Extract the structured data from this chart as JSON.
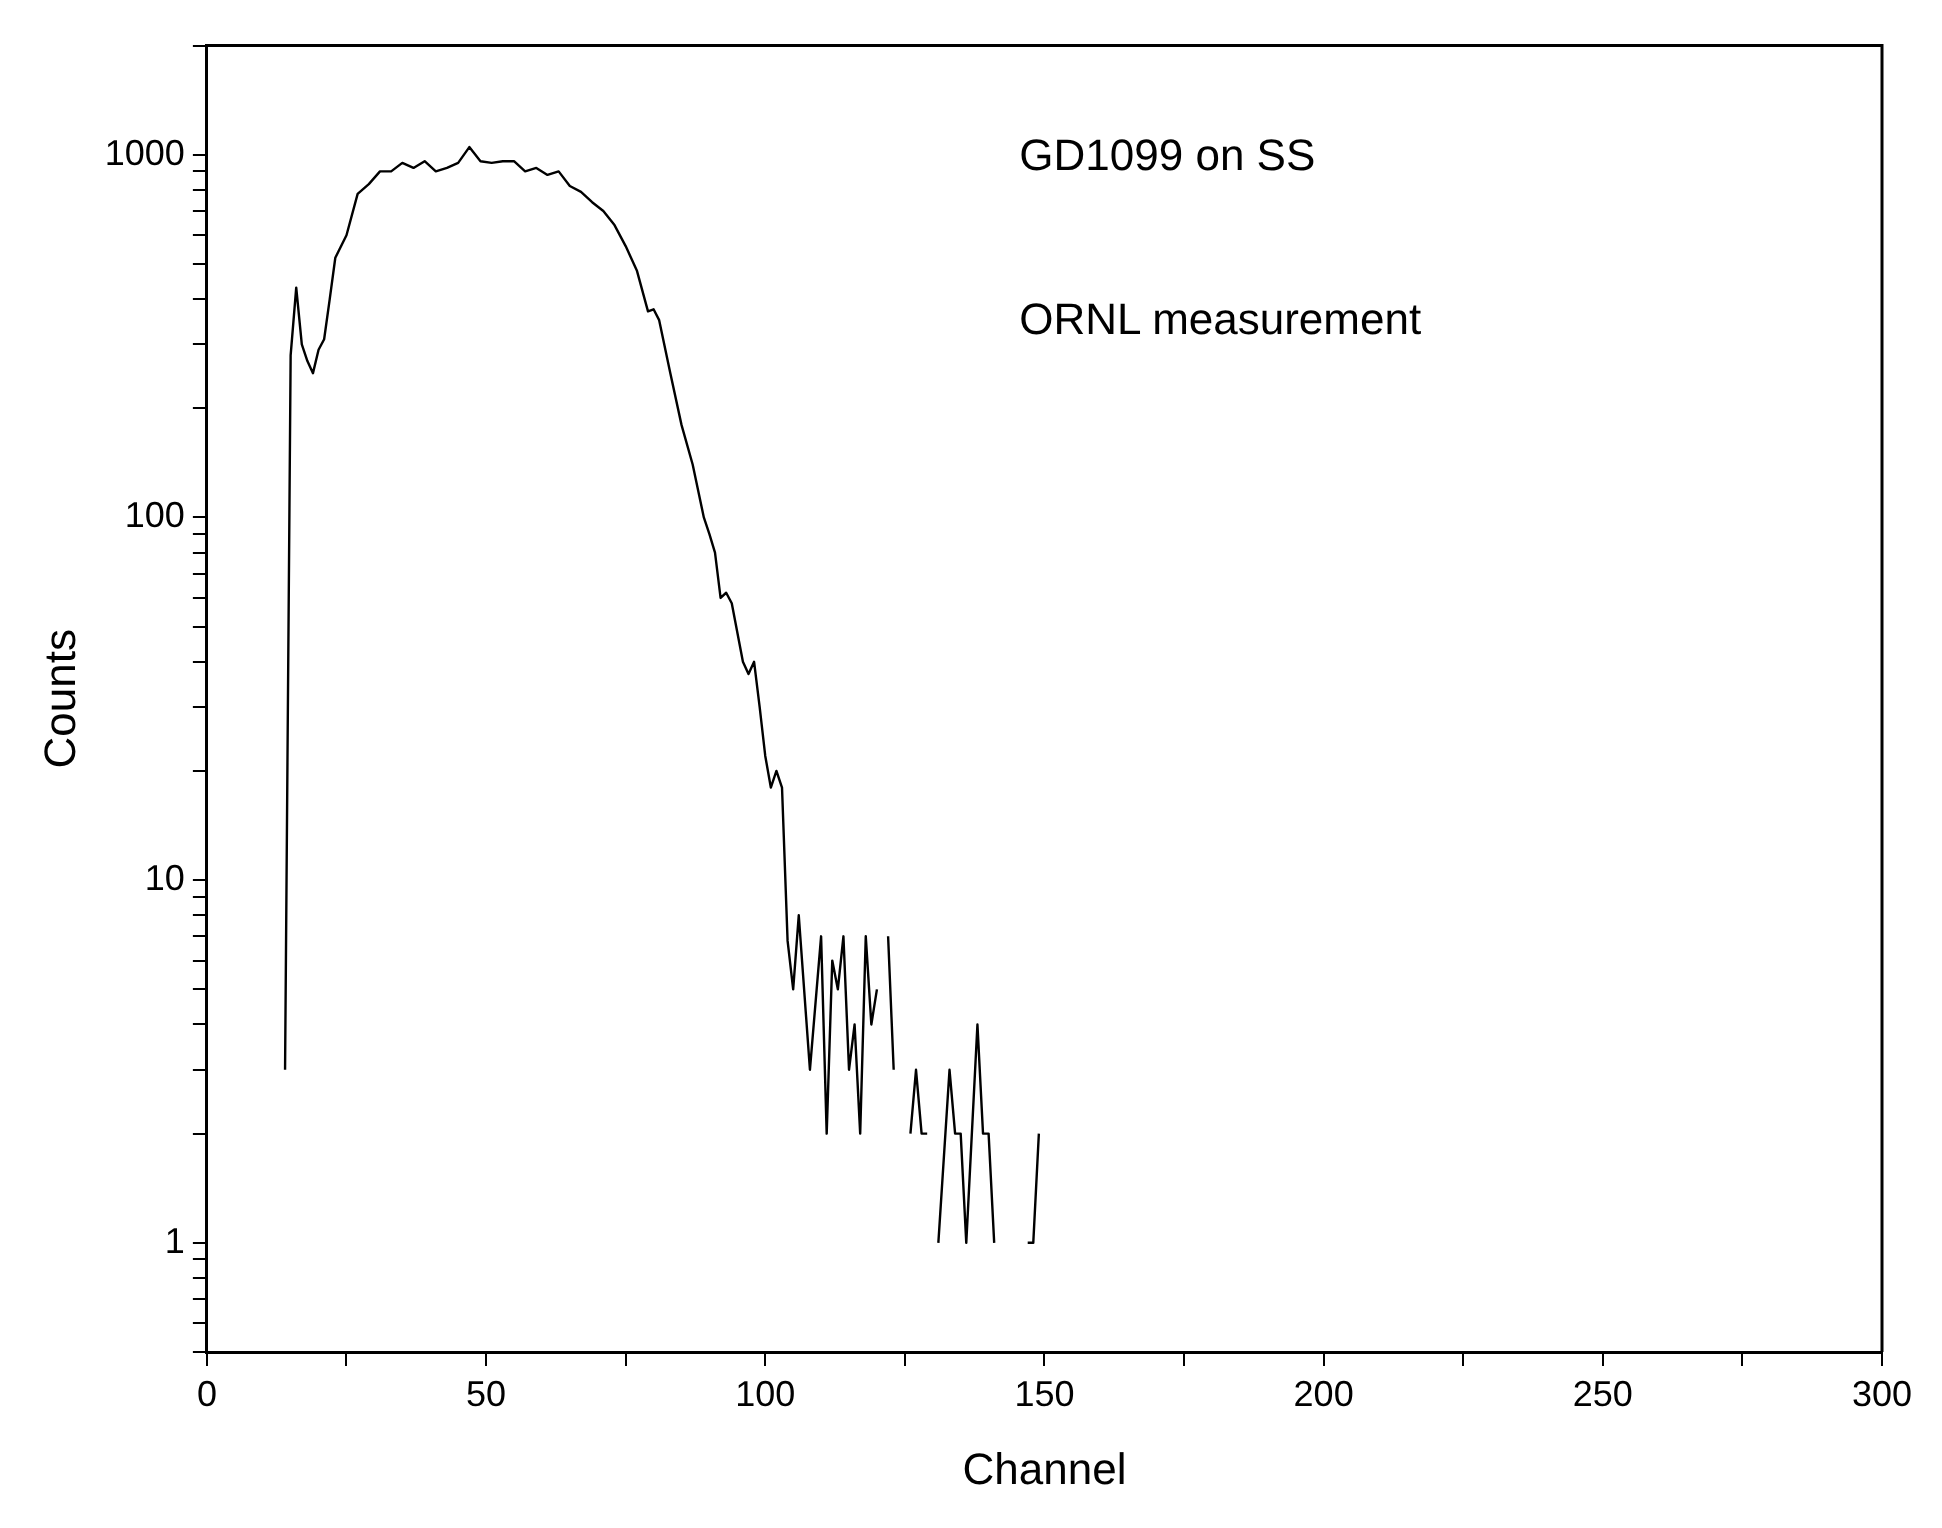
{
  "chart_data": {
    "type": "line",
    "xlabel": "Channel",
    "ylabel": "Counts",
    "log": "y",
    "grid": false,
    "legend": false,
    "marker": "none",
    "line_style": "solid",
    "annotations": [
      "GD1099 on SS",
      "ORNL measurement"
    ],
    "xlim": [
      0,
      300
    ],
    "ylim": [
      0.5,
      2000
    ],
    "xticks": [
      0,
      {
        "value": 25,
        "label": null
      },
      50,
      {
        "value": 75,
        "label": null
      },
      100,
      {
        "value": 125,
        "label": null
      },
      150,
      {
        "value": 175,
        "label": null
      },
      200,
      {
        "value": 225,
        "label": null
      },
      250,
      {
        "value": 275,
        "label": null
      },
      300
    ],
    "yticks": [
      {
        "value": 0.5,
        "label": null
      },
      {
        "value": 0.6,
        "label": null
      },
      {
        "value": 0.7,
        "label": null
      },
      {
        "value": 0.8,
        "label": null
      },
      {
        "value": 0.9,
        "label": null
      },
      1,
      {
        "value": 2,
        "label": null
      },
      {
        "value": 3,
        "label": null
      },
      {
        "value": 4,
        "label": null
      },
      {
        "value": 5,
        "label": null
      },
      {
        "value": 6,
        "label": null
      },
      {
        "value": 7,
        "label": null
      },
      {
        "value": 8,
        "label": null
      },
      {
        "value": 9,
        "label": null
      },
      10,
      {
        "value": 20,
        "label": null
      },
      {
        "value": 30,
        "label": null
      },
      {
        "value": 40,
        "label": null
      },
      {
        "value": 50,
        "label": null
      },
      {
        "value": 60,
        "label": null
      },
      {
        "value": 70,
        "label": null
      },
      {
        "value": 80,
        "label": null
      },
      {
        "value": 90,
        "label": null
      },
      100,
      {
        "value": 200,
        "label": null
      },
      {
        "value": 300,
        "label": null
      },
      {
        "value": 400,
        "label": null
      },
      {
        "value": 500,
        "label": null
      },
      {
        "value": 600,
        "label": null
      },
      {
        "value": 700,
        "label": null
      },
      {
        "value": 800,
        "label": null
      },
      {
        "value": 900,
        "label": null
      },
      1000,
      {
        "value": 2000,
        "label": null
      }
    ],
    "series": [
      {
        "color": "#000000",
        "x": [
          14,
          15,
          16,
          17,
          18,
          19,
          20,
          21,
          22,
          23,
          25,
          27,
          29,
          31,
          33,
          35,
          37,
          39,
          41,
          43,
          45,
          47,
          49,
          51,
          53,
          55,
          57,
          59,
          61,
          63,
          65,
          67,
          69,
          71,
          73,
          75,
          77,
          79,
          80,
          81,
          83,
          85,
          87,
          89,
          90,
          91,
          92,
          93,
          94,
          96,
          97,
          98,
          99,
          100,
          101,
          102,
          103,
          104,
          105,
          106,
          108,
          110,
          111,
          112,
          113,
          114,
          115,
          116,
          117,
          118,
          119,
          120,
          121,
          122,
          123,
          125,
          126,
          127,
          128,
          129,
          130,
          131,
          133,
          134,
          135,
          136,
          138,
          139,
          140,
          141,
          144,
          147,
          148,
          149
        ],
        "values": [
          3,
          280,
          430,
          300,
          270,
          250,
          290,
          310,
          400,
          520,
          600,
          780,
          830,
          900,
          900,
          950,
          920,
          960,
          900,
          920,
          950,
          1050,
          960,
          950,
          960,
          960,
          900,
          920,
          880,
          900,
          820,
          790,
          740,
          700,
          640,
          560,
          480,
          370,
          375,
          350,
          250,
          180,
          140,
          100,
          90,
          80,
          60,
          62,
          58,
          40,
          37,
          40,
          30,
          22,
          18,
          20,
          18,
          6.8,
          5,
          8,
          3,
          7,
          2,
          6,
          5,
          7,
          3,
          4,
          2,
          7,
          4,
          5,
          null,
          7,
          3,
          null,
          2,
          3,
          2,
          2,
          null,
          1,
          3,
          2,
          2,
          1,
          4,
          2,
          2,
          1,
          null,
          1,
          1,
          2
        ]
      }
    ]
  }
}
